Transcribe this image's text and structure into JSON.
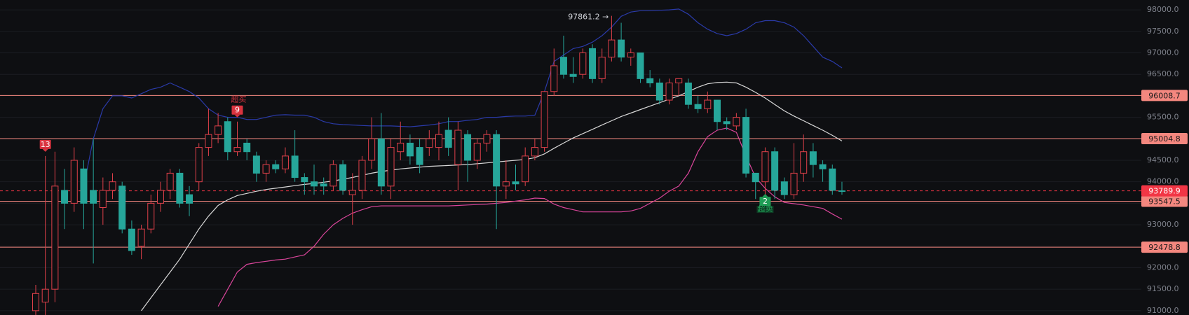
{
  "chart_data": {
    "type": "candlestick",
    "up_color": "#e0404a",
    "down_color": "#26a69a",
    "ylim": [
      90900,
      98230
    ],
    "yticks": [
      {
        "value": 91000,
        "label": "91000.0"
      },
      {
        "value": 91500,
        "label": "91500.0"
      },
      {
        "value": 92000,
        "label": "92000.0"
      },
      {
        "value": 92500,
        "label": "92500.0"
      },
      {
        "value": 93000,
        "label": "93000.0"
      },
      {
        "value": 93500,
        "label": "93500.0"
      },
      {
        "value": 94000,
        "label": "94000.0"
      },
      {
        "value": 94500,
        "label": "94500.0"
      },
      {
        "value": 95000,
        "label": "95000.0"
      },
      {
        "value": 95500,
        "label": "95500.0"
      },
      {
        "value": 96000,
        "label": "96000.0"
      },
      {
        "value": 96500,
        "label": "96500.0"
      },
      {
        "value": 97000,
        "label": "97000.0"
      },
      {
        "value": 97500,
        "label": "97500.0"
      },
      {
        "value": 98000,
        "label": "98000.0"
      }
    ],
    "grid": true,
    "candles": {
      "open": [
        91000,
        91200,
        91500,
        93800,
        93500,
        94300,
        93800,
        93400,
        93800,
        93900,
        92900,
        92500,
        92900,
        93500,
        93800,
        94200,
        93700,
        94000,
        94800,
        95100,
        95400,
        94700,
        94900,
        94600,
        94200,
        94400,
        94300,
        94600,
        94100,
        94000,
        93950,
        93900,
        94400,
        93700,
        93800,
        94500,
        95000,
        93900,
        94700,
        94900,
        94800,
        94800,
        94800,
        95200,
        94400,
        95100,
        94500,
        94900,
        95100,
        93900,
        94000,
        94000,
        94600,
        94800,
        96100,
        96900,
        96500,
        96500,
        97100,
        96400,
        96900,
        97300,
        96900,
        97000,
        96400,
        96300,
        95900,
        96300,
        96300,
        95800,
        95700,
        95900,
        95400,
        95300,
        95500,
        94200,
        94000,
        94700,
        94000,
        93700,
        94200,
        94700,
        94400,
        94300,
        93790
      ],
      "high": [
        91600,
        94600,
        94700,
        94300,
        94800,
        94500,
        95000,
        94100,
        94200,
        94000,
        93100,
        93000,
        93700,
        94000,
        94300,
        94300,
        93900,
        94900,
        95700,
        95600,
        95500,
        95400,
        95000,
        94700,
        94500,
        94500,
        94800,
        95200,
        94200,
        94400,
        94100,
        94500,
        94500,
        94200,
        94600,
        95500,
        95600,
        95000,
        95400,
        95100,
        95000,
        95200,
        95400,
        95500,
        95400,
        95200,
        95000,
        95200,
        95200,
        94500,
        94400,
        94800,
        95000,
        96100,
        97100,
        97400,
        96900,
        97100,
        97200,
        97100,
        97861.2,
        97700,
        97100,
        97000,
        96600,
        96400,
        96400,
        96400,
        96400,
        96000,
        96100,
        95900,
        95500,
        95600,
        95700,
        94200,
        94800,
        94800,
        94100,
        94900,
        95100,
        94900,
        94500,
        94400,
        94000
      ],
      "low": [
        90900,
        90900,
        91200,
        92900,
        93300,
        92900,
        92100,
        93000,
        93600,
        92800,
        92300,
        92200,
        92800,
        93300,
        93600,
        93400,
        93200,
        93800,
        94600,
        94900,
        94500,
        94600,
        94500,
        94000,
        94000,
        94200,
        94200,
        94000,
        93700,
        93700,
        93700,
        93800,
        93700,
        93000,
        93600,
        94300,
        93700,
        93600,
        94500,
        94400,
        94200,
        94600,
        94500,
        94600,
        93800,
        94000,
        94300,
        94700,
        92900,
        93600,
        93800,
        93900,
        94500,
        94700,
        96000,
        96400,
        96300,
        96400,
        96300,
        96300,
        96800,
        96800,
        96700,
        96300,
        96200,
        95800,
        95800,
        96000,
        95700,
        95600,
        95600,
        95200,
        95200,
        95200,
        94100,
        93600,
        93700,
        93600,
        93600,
        93600,
        94000,
        94100,
        94000,
        93700,
        93700
      ],
      "close": [
        91400,
        91500,
        93900,
        93500,
        94500,
        93500,
        93500,
        93800,
        94000,
        92900,
        92400,
        92900,
        93500,
        93800,
        94200,
        93500,
        93500,
        94800,
        95100,
        95300,
        94700,
        94800,
        94700,
        94200,
        94400,
        94300,
        94600,
        94100,
        94000,
        93900,
        93900,
        94400,
        93800,
        93800,
        94500,
        95000,
        93900,
        94800,
        94900,
        94600,
        94400,
        95000,
        95100,
        94800,
        95200,
        94500,
        94900,
        95100,
        93900,
        94000,
        93950,
        94600,
        94800,
        96100,
        96700,
        96500,
        96450,
        97000,
        96400,
        96900,
        97300,
        96900,
        97000,
        96400,
        96300,
        95900,
        96300,
        96400,
        95800,
        95700,
        95900,
        95400,
        95350,
        95500,
        94200,
        94000,
        94700,
        93800,
        93700,
        94200,
        94700,
        94400,
        94300,
        93800,
        93789.9
      ]
    },
    "lines": [
      {
        "color": "#2a3aa8",
        "values": [
          null,
          null,
          null,
          null,
          null,
          93900,
          95000,
          95700,
          96000,
          96000,
          95950,
          96050,
          96150,
          96200,
          96300,
          96200,
          96100,
          95950,
          95700,
          95550,
          95500,
          95500,
          95450,
          95450,
          95500,
          95550,
          95560,
          95550,
          95550,
          95500,
          95400,
          95350,
          95330,
          95320,
          95310,
          95300,
          95300,
          95300,
          95290,
          95280,
          95300,
          95320,
          95350,
          95400,
          95400,
          95430,
          95450,
          95500,
          95500,
          95520,
          95530,
          95530,
          95550,
          96100,
          96800,
          96950,
          97100,
          97150,
          97250,
          97400,
          97600,
          97850,
          97950,
          97980,
          97980,
          97990,
          98000,
          98020,
          97900,
          97700,
          97550,
          97450,
          97400,
          97450,
          97550,
          97700,
          97750,
          97750,
          97700,
          97600,
          97400,
          97150,
          96900,
          96800,
          96650
        ]
      },
      {
        "color": "#d8d8d8",
        "values": [
          null,
          null,
          null,
          null,
          null,
          null,
          null,
          null,
          null,
          null,
          null,
          91000,
          91300,
          91600,
          91900,
          92200,
          92550,
          92900,
          93200,
          93450,
          93580,
          93680,
          93730,
          93780,
          93820,
          93850,
          93880,
          93910,
          93940,
          93960,
          93990,
          94020,
          94060,
          94100,
          94150,
          94200,
          94240,
          94270,
          94300,
          94320,
          94340,
          94360,
          94370,
          94380,
          94390,
          94400,
          94420,
          94440,
          94460,
          94480,
          94500,
          94520,
          94560,
          94650,
          94780,
          94900,
          95020,
          95120,
          95220,
          95320,
          95420,
          95520,
          95600,
          95680,
          95760,
          95840,
          95920,
          96000,
          96100,
          96200,
          96280,
          96310,
          96320,
          96300,
          96200,
          96080,
          95950,
          95800,
          95650,
          95530,
          95420,
          95310,
          95200,
          95080,
          94950
        ]
      },
      {
        "color": "#d9459a",
        "values": [
          null,
          null,
          null,
          null,
          null,
          null,
          null,
          null,
          null,
          null,
          null,
          null,
          null,
          null,
          null,
          null,
          null,
          null,
          null,
          91100,
          91500,
          91900,
          92080,
          92120,
          92150,
          92180,
          92200,
          92250,
          92300,
          92500,
          92780,
          93000,
          93150,
          93270,
          93350,
          93420,
          93440,
          93440,
          93440,
          93440,
          93440,
          93440,
          93440,
          93440,
          93450,
          93460,
          93470,
          93480,
          93500,
          93520,
          93550,
          93580,
          93620,
          93610,
          93480,
          93400,
          93350,
          93300,
          93300,
          93300,
          93300,
          93300,
          93320,
          93380,
          93500,
          93620,
          93780,
          93900,
          94200,
          94700,
          95050,
          95200,
          95250,
          95150,
          94600,
          94100,
          93850,
          93650,
          93520,
          93490,
          93460,
          93420,
          93380,
          93250,
          93130
        ]
      }
    ],
    "levels": [
      96008.7,
      95004.8,
      93547.5,
      92478.8
    ],
    "level_color": "#f4877f",
    "last_price": 93789.9,
    "last_color": "#f23645",
    "max_label": {
      "index": 60,
      "label": "97861.2 →"
    },
    "markers": [
      {
        "index": 1,
        "label": "13",
        "side": "above",
        "color": "#d9333f"
      },
      {
        "index": 21,
        "label": "9",
        "note": "超买",
        "side": "above",
        "color": "#d9333f"
      },
      {
        "index": 76,
        "label": "2",
        "note": "超卖",
        "side": "below",
        "color": "#1f9d55"
      }
    ]
  }
}
